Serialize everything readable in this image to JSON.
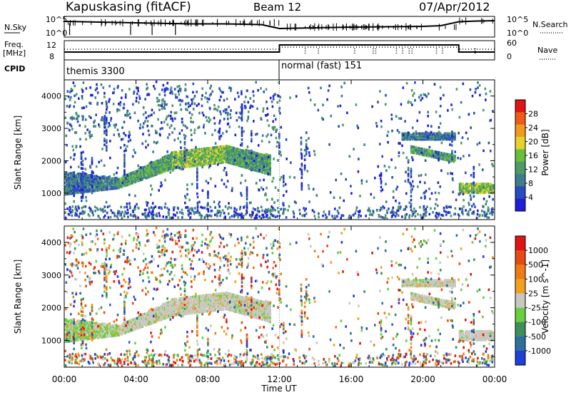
{
  "header": {
    "station": "Kapuskasing (fitACF)",
    "beam": "Beam 12",
    "date": "07/Apr/2012"
  },
  "side_labels": {
    "nsky": "N.Sky",
    "freq": "Freq.",
    "freq_unit": "[MHz]",
    "cpid": "CPID",
    "nsearch": "N.Search",
    "nave": "Nave"
  },
  "cpid_labels": [
    "themis 3300",
    "normal (fast) 151"
  ],
  "colors": {
    "power_scale": [
      "#1f1fd9",
      "#2a4bbf",
      "#3f7d8c",
      "#4e9a6a",
      "#6abf3a",
      "#e6d22a",
      "#f29a1c",
      "#ef5a16",
      "#e01414"
    ],
    "velocity_scale": [
      "#1f3fd9",
      "#2f6fa0",
      "#3f8f5a",
      "#6acf40",
      "#c8c8c0",
      "#f2a21c",
      "#ef7a16",
      "#e84a14",
      "#e01414"
    ]
  },
  "chart_data": [
    {
      "type": "line",
      "panel": "noise",
      "ylabels_left": [
        "10^5",
        "10^0"
      ],
      "ylabels_right": [
        "10^5",
        "10^0"
      ],
      "series": [
        {
          "name": "N.Sky",
          "x": [
            0,
            1,
            2,
            3,
            4,
            5,
            6,
            7,
            8,
            9,
            10,
            11,
            12,
            13,
            14,
            16,
            18,
            20,
            21,
            22,
            23,
            24
          ],
          "y": [
            4,
            3.9,
            3.8,
            3.7,
            3.6,
            3.5,
            3.4,
            3.3,
            3.3,
            3.3,
            3.2,
            3.1,
            2.0,
            2.1,
            2.2,
            2.4,
            2.5,
            2.6,
            2.8,
            3.9,
            4.1,
            4.2
          ]
        }
      ]
    },
    {
      "type": "line",
      "panel": "frequency",
      "ylabels_left": [
        "12",
        "8"
      ],
      "ylabels_right": [
        "60",
        "0"
      ],
      "series": [
        {
          "name": "Nave",
          "x": [
            0,
            12,
            12,
            22,
            22,
            24
          ],
          "y": [
            15,
            15,
            48,
            48,
            15,
            15
          ]
        }
      ]
    },
    {
      "type": "heatmap",
      "title": "Power",
      "ylabel": "Slant Range [km]",
      "ylim": [
        180,
        4500
      ],
      "yticks": [
        1000,
        2000,
        3000,
        4000
      ],
      "colorbar_label": "Power [dB]",
      "colorbar_ticks": [
        "28",
        "24",
        "20",
        "16",
        "12",
        "8",
        "4"
      ],
      "echo_bands": [
        {
          "t0": 0.0,
          "t1": 3.0,
          "r_low": [
            1000,
            1200
          ],
          "r_high": [
            1700,
            1500
          ],
          "level": 2
        },
        {
          "t0": 3.0,
          "t1": 6.0,
          "r_low": [
            1200,
            1800
          ],
          "r_high": [
            1500,
            2300
          ],
          "level": 3
        },
        {
          "t0": 6.0,
          "t1": 9.0,
          "r_low": [
            1800,
            2000
          ],
          "r_high": [
            2300,
            2500
          ],
          "level": 4
        },
        {
          "t0": 9.0,
          "t1": 11.5,
          "r_low": [
            2000,
            1600
          ],
          "r_high": [
            2500,
            2200
          ],
          "level": 3
        },
        {
          "t0": 18.8,
          "t1": 21.8,
          "r_low": [
            2700,
            2700
          ],
          "r_high": [
            2900,
            2900
          ],
          "level": 2
        },
        {
          "t0": 19.3,
          "t1": 21.8,
          "r_low": [
            2300,
            2000
          ],
          "r_high": [
            2500,
            2200
          ],
          "level": 3
        },
        {
          "t0": 22.0,
          "t1": 24.0,
          "r_low": [
            1050,
            1050
          ],
          "r_high": [
            1350,
            1350
          ],
          "level": 4
        }
      ]
    },
    {
      "type": "heatmap",
      "title": "Velocity",
      "ylabel": "Slant Range [km]",
      "xlabel": "Time UT",
      "ylim": [
        180,
        4500
      ],
      "yticks": [
        1000,
        2000,
        3000,
        4000
      ],
      "xticks": [
        "00:00",
        "04:00",
        "08:00",
        "12:00",
        "16:00",
        "20:00",
        "00:00"
      ],
      "colorbar_label": "Velocity [m s^-1]",
      "colorbar_ticks": [
        "1000",
        "500",
        "100",
        "25",
        "-25",
        "-100",
        "-500",
        "-1000"
      ]
    }
  ]
}
